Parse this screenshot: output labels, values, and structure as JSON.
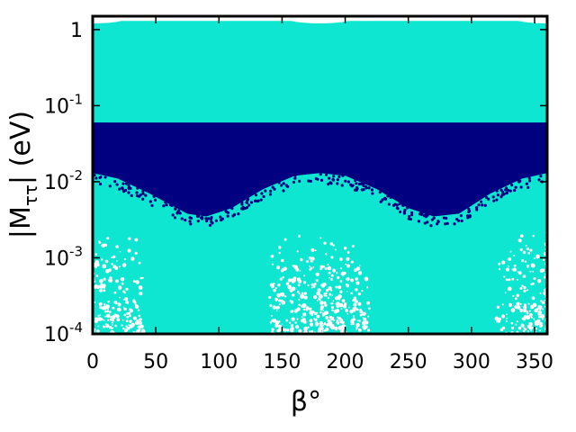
{
  "chart_data": {
    "type": "scatter",
    "xlabel": "β°",
    "ylabel_parts": {
      "main": "|M",
      "sub": "ττ",
      "end": "| (eV)"
    },
    "xlim": [
      0,
      360
    ],
    "ylim": [
      0.0001,
      1.5
    ],
    "y_scale": "log",
    "grid": false,
    "x_ticks": [
      0,
      50,
      100,
      150,
      200,
      250,
      300,
      350
    ],
    "x_tick_labels": [
      "0",
      "50",
      "100",
      "150",
      "200",
      "250",
      "300",
      "350"
    ],
    "y_ticks": [
      {
        "value": 1,
        "base": "1",
        "exp": ""
      },
      {
        "value": 0.1,
        "base": "10",
        "exp": "-1"
      },
      {
        "value": 0.01,
        "base": "10",
        "exp": "-2"
      },
      {
        "value": 0.001,
        "base": "10",
        "exp": "-3"
      },
      {
        "value": 0.0001,
        "base": "10",
        "exp": "-4"
      }
    ],
    "series": [
      {
        "color": "#0ee6d2",
        "region": {
          "y_min": 0.0001,
          "y_max": 1.3,
          "upper_gaps_near_deg": [
            0,
            180,
            360
          ],
          "sparse_band_below": 0.002,
          "sparse_band_densest_near_deg": [
            0,
            180,
            360
          ]
        }
      },
      {
        "color": "#000080",
        "region": {
          "y_max": 0.06,
          "y_min_envelope": [
            [
              0,
              0.013
            ],
            [
              20,
              0.011
            ],
            [
              45,
              0.007
            ],
            [
              75,
              0.0038
            ],
            [
              90,
              0.0035
            ],
            [
              110,
              0.0045
            ],
            [
              135,
              0.008
            ],
            [
              160,
              0.012
            ],
            [
              180,
              0.013
            ],
            [
              200,
              0.012
            ],
            [
              225,
              0.008
            ],
            [
              250,
              0.0045
            ],
            [
              270,
              0.0035
            ],
            [
              290,
              0.0038
            ],
            [
              315,
              0.007
            ],
            [
              340,
              0.011
            ],
            [
              360,
              0.013
            ]
          ]
        }
      }
    ]
  }
}
